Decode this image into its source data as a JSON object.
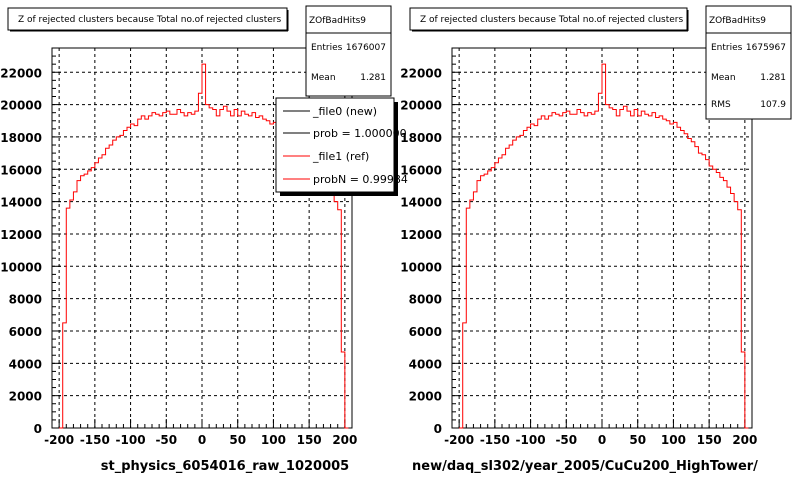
{
  "chart_data": [
    {
      "type": "histogram",
      "title": "Z of rejected clusters  because Total no.of rejected clusters",
      "xlabel": "st_physics_6054016_raw_1020005",
      "ylabel": "",
      "xlim": [
        -210,
        210
      ],
      "ylim": [
        0,
        23500
      ],
      "x_ticks": [
        -200,
        -150,
        -100,
        -50,
        0,
        50,
        100,
        150,
        200
      ],
      "y_ticks": [
        0,
        2000,
        4000,
        6000,
        8000,
        10000,
        12000,
        14000,
        16000,
        18000,
        20000,
        22000
      ],
      "grid": true,
      "bin_width": 5,
      "series": [
        {
          "color": "#ff0000",
          "bins": [
            {
              "x": -200,
              "y": 0
            },
            {
              "x": -195,
              "y": 6500
            },
            {
              "x": -190,
              "y": 13600
            },
            {
              "x": -185,
              "y": 14100
            },
            {
              "x": -180,
              "y": 14600
            },
            {
              "x": -175,
              "y": 15300
            },
            {
              "x": -170,
              "y": 15600
            },
            {
              "x": -165,
              "y": 15700
            },
            {
              "x": -160,
              "y": 15900
            },
            {
              "x": -155,
              "y": 16100
            },
            {
              "x": -150,
              "y": 16400
            },
            {
              "x": -145,
              "y": 16700
            },
            {
              "x": -140,
              "y": 16900
            },
            {
              "x": -135,
              "y": 17300
            },
            {
              "x": -130,
              "y": 17500
            },
            {
              "x": -125,
              "y": 17800
            },
            {
              "x": -120,
              "y": 18000
            },
            {
              "x": -115,
              "y": 18100
            },
            {
              "x": -110,
              "y": 18400
            },
            {
              "x": -105,
              "y": 18600
            },
            {
              "x": -100,
              "y": 18800
            },
            {
              "x": -95,
              "y": 18700
            },
            {
              "x": -90,
              "y": 19100
            },
            {
              "x": -85,
              "y": 19300
            },
            {
              "x": -80,
              "y": 19100
            },
            {
              "x": -75,
              "y": 19300
            },
            {
              "x": -70,
              "y": 19500
            },
            {
              "x": -65,
              "y": 19400
            },
            {
              "x": -60,
              "y": 19300
            },
            {
              "x": -55,
              "y": 19500
            },
            {
              "x": -50,
              "y": 19600
            },
            {
              "x": -45,
              "y": 19400
            },
            {
              "x": -40,
              "y": 19400
            },
            {
              "x": -35,
              "y": 19700
            },
            {
              "x": -30,
              "y": 19500
            },
            {
              "x": -25,
              "y": 19300
            },
            {
              "x": -20,
              "y": 19500
            },
            {
              "x": -15,
              "y": 19400
            },
            {
              "x": -10,
              "y": 19600
            },
            {
              "x": -5,
              "y": 20700
            },
            {
              "x": 0,
              "y": 22500
            },
            {
              "x": 5,
              "y": 20000
            },
            {
              "x": 10,
              "y": 19800
            },
            {
              "x": 15,
              "y": 19700
            },
            {
              "x": 20,
              "y": 19300
            },
            {
              "x": 25,
              "y": 19700
            },
            {
              "x": 30,
              "y": 19900
            },
            {
              "x": 35,
              "y": 19600
            },
            {
              "x": 40,
              "y": 19300
            },
            {
              "x": 45,
              "y": 19700
            },
            {
              "x": 50,
              "y": 19300
            },
            {
              "x": 55,
              "y": 19600
            },
            {
              "x": 60,
              "y": 19400
            },
            {
              "x": 65,
              "y": 19300
            },
            {
              "x": 70,
              "y": 19500
            },
            {
              "x": 75,
              "y": 19200
            },
            {
              "x": 80,
              "y": 19300
            },
            {
              "x": 85,
              "y": 19100
            },
            {
              "x": 90,
              "y": 19000
            },
            {
              "x": 95,
              "y": 18800
            },
            {
              "x": 100,
              "y": 18900
            },
            {
              "x": 105,
              "y": 18600
            },
            {
              "x": 110,
              "y": 18400
            },
            {
              "x": 115,
              "y": 18200
            },
            {
              "x": 120,
              "y": 17900
            },
            {
              "x": 125,
              "y": 17700
            },
            {
              "x": 130,
              "y": 17400
            },
            {
              "x": 135,
              "y": 17000
            },
            {
              "x": 140,
              "y": 16900
            },
            {
              "x": 145,
              "y": 16600
            },
            {
              "x": 150,
              "y": 16200
            },
            {
              "x": 155,
              "y": 16000
            },
            {
              "x": 160,
              "y": 15800
            },
            {
              "x": 165,
              "y": 15500
            },
            {
              "x": 170,
              "y": 15300
            },
            {
              "x": 175,
              "y": 14900
            },
            {
              "x": 180,
              "y": 14500
            },
            {
              "x": 185,
              "y": 14000
            },
            {
              "x": 190,
              "y": 13500
            },
            {
              "x": 195,
              "y": 4700
            },
            {
              "x": 200,
              "y": 0
            }
          ]
        }
      ]
    },
    {
      "type": "histogram",
      "title": "Z of rejected clusters  because Total no.of rejected clusters",
      "xlabel": "new/daq_sl302/year_2005/CuCu200_HighTower/",
      "ylabel": "",
      "xlim": [
        -210,
        210
      ],
      "ylim": [
        0,
        23500
      ],
      "x_ticks": [
        -200,
        -150,
        -100,
        -50,
        0,
        50,
        100,
        150,
        200
      ],
      "y_ticks": [
        0,
        2000,
        4000,
        6000,
        8000,
        10000,
        12000,
        14000,
        16000,
        18000,
        20000,
        22000
      ],
      "grid": true,
      "bin_width": 5,
      "series": [
        {
          "color": "#ff0000",
          "bins": [
            {
              "x": -200,
              "y": 0
            },
            {
              "x": -195,
              "y": 6500
            },
            {
              "x": -190,
              "y": 13600
            },
            {
              "x": -185,
              "y": 14100
            },
            {
              "x": -180,
              "y": 14600
            },
            {
              "x": -175,
              "y": 15300
            },
            {
              "x": -170,
              "y": 15600
            },
            {
              "x": -165,
              "y": 15700
            },
            {
              "x": -160,
              "y": 15900
            },
            {
              "x": -155,
              "y": 16100
            },
            {
              "x": -150,
              "y": 16400
            },
            {
              "x": -145,
              "y": 16700
            },
            {
              "x": -140,
              "y": 16900
            },
            {
              "x": -135,
              "y": 17300
            },
            {
              "x": -130,
              "y": 17500
            },
            {
              "x": -125,
              "y": 17800
            },
            {
              "x": -120,
              "y": 18000
            },
            {
              "x": -115,
              "y": 18100
            },
            {
              "x": -110,
              "y": 18400
            },
            {
              "x": -105,
              "y": 18600
            },
            {
              "x": -100,
              "y": 18800
            },
            {
              "x": -95,
              "y": 18700
            },
            {
              "x": -90,
              "y": 19100
            },
            {
              "x": -85,
              "y": 19300
            },
            {
              "x": -80,
              "y": 19100
            },
            {
              "x": -75,
              "y": 19300
            },
            {
              "x": -70,
              "y": 19500
            },
            {
              "x": -65,
              "y": 19400
            },
            {
              "x": -60,
              "y": 19300
            },
            {
              "x": -55,
              "y": 19500
            },
            {
              "x": -50,
              "y": 19600
            },
            {
              "x": -45,
              "y": 19400
            },
            {
              "x": -40,
              "y": 19400
            },
            {
              "x": -35,
              "y": 19700
            },
            {
              "x": -30,
              "y": 19500
            },
            {
              "x": -25,
              "y": 19300
            },
            {
              "x": -20,
              "y": 19500
            },
            {
              "x": -15,
              "y": 19400
            },
            {
              "x": -10,
              "y": 19600
            },
            {
              "x": -5,
              "y": 20700
            },
            {
              "x": 0,
              "y": 22500
            },
            {
              "x": 5,
              "y": 20000
            },
            {
              "x": 10,
              "y": 19800
            },
            {
              "x": 15,
              "y": 19700
            },
            {
              "x": 20,
              "y": 19300
            },
            {
              "x": 25,
              "y": 19700
            },
            {
              "x": 30,
              "y": 19900
            },
            {
              "x": 35,
              "y": 19600
            },
            {
              "x": 40,
              "y": 19300
            },
            {
              "x": 45,
              "y": 19700
            },
            {
              "x": 50,
              "y": 19300
            },
            {
              "x": 55,
              "y": 19600
            },
            {
              "x": 60,
              "y": 19400
            },
            {
              "x": 65,
              "y": 19300
            },
            {
              "x": 70,
              "y": 19500
            },
            {
              "x": 75,
              "y": 19200
            },
            {
              "x": 80,
              "y": 19300
            },
            {
              "x": 85,
              "y": 19100
            },
            {
              "x": 90,
              "y": 19000
            },
            {
              "x": 95,
              "y": 18800
            },
            {
              "x": 100,
              "y": 18900
            },
            {
              "x": 105,
              "y": 18600
            },
            {
              "x": 110,
              "y": 18400
            },
            {
              "x": 115,
              "y": 18200
            },
            {
              "x": 120,
              "y": 17900
            },
            {
              "x": 125,
              "y": 17700
            },
            {
              "x": 130,
              "y": 17400
            },
            {
              "x": 135,
              "y": 17000
            },
            {
              "x": 140,
              "y": 16900
            },
            {
              "x": 145,
              "y": 16600
            },
            {
              "x": 150,
              "y": 16200
            },
            {
              "x": 155,
              "y": 16000
            },
            {
              "x": 160,
              "y": 15800
            },
            {
              "x": 165,
              "y": 15500
            },
            {
              "x": 170,
              "y": 15300
            },
            {
              "x": 175,
              "y": 14900
            },
            {
              "x": 180,
              "y": 14500
            },
            {
              "x": 185,
              "y": 14000
            },
            {
              "x": 190,
              "y": 13500
            },
            {
              "x": 195,
              "y": 4700
            },
            {
              "x": 200,
              "y": 0
            }
          ]
        }
      ]
    }
  ],
  "stats_boxes": [
    {
      "name": "ZOfBadHits9",
      "rows": [
        {
          "label": "Entries",
          "value": "1676007"
        },
        {
          "label": "Mean",
          "value": "1.281"
        }
      ]
    },
    {
      "name": "ZOfBadHits9",
      "rows": [
        {
          "label": "Entries",
          "value": "1675967"
        },
        {
          "label": "Mean",
          "value": "1.281"
        },
        {
          "label": "RMS",
          "value": "107.9"
        }
      ]
    }
  ],
  "legend": {
    "entries": [
      {
        "label": "_file0 (new)",
        "color": "#000000"
      },
      {
        "label": "prob = 1.000000",
        "color": "#000000"
      },
      {
        "label": "_file1 (ref)",
        "color": "#ff0000"
      },
      {
        "label": "probN = 0.99984",
        "color": "#ff0000"
      }
    ]
  }
}
